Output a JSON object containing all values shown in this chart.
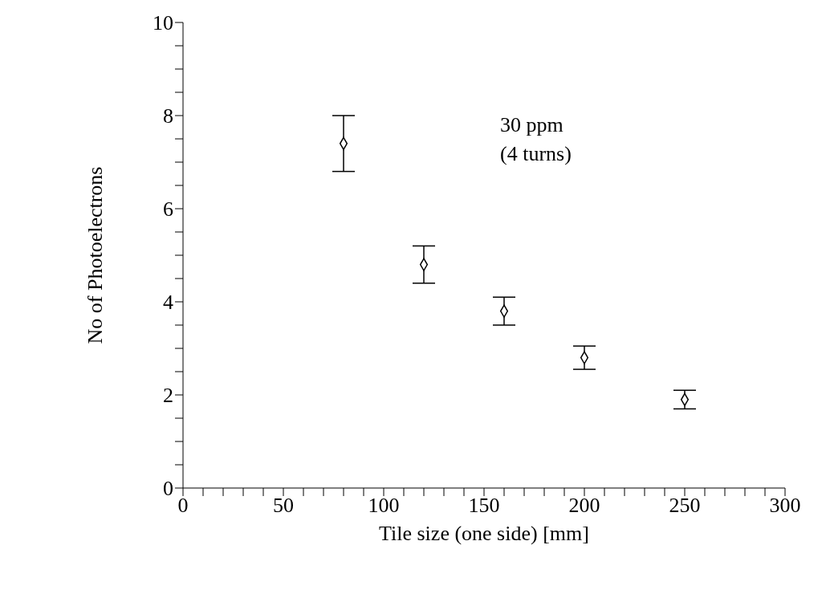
{
  "chart_data": {
    "type": "scatter",
    "xlabel": "Tile size (one side) [mm]",
    "ylabel": "No of Photoelectrons",
    "x": [
      80,
      120,
      160,
      200,
      250
    ],
    "series": [
      {
        "color": "#000000",
        "values": [
          7.4,
          4.8,
          3.8,
          2.8,
          1.9
        ],
        "errors": [
          0.6,
          0.4,
          0.3,
          0.25,
          0.2
        ]
      }
    ],
    "xlim": [
      0,
      300
    ],
    "xticks": [
      0,
      {
        "value": 10,
        "label": null
      },
      {
        "value": 20,
        "label": null
      },
      {
        "value": 30,
        "label": null
      },
      {
        "value": 40,
        "label": null
      },
      50,
      {
        "value": 60,
        "label": null
      },
      {
        "value": 70,
        "label": null
      },
      {
        "value": 80,
        "label": null
      },
      {
        "value": 90,
        "label": null
      },
      100,
      {
        "value": 110,
        "label": null
      },
      {
        "value": 120,
        "label": null
      },
      {
        "value": 130,
        "label": null
      },
      {
        "value": 140,
        "label": null
      },
      150,
      {
        "value": 160,
        "label": null
      },
      {
        "value": 170,
        "label": null
      },
      {
        "value": 180,
        "label": null
      },
      {
        "value": 190,
        "label": null
      },
      200,
      {
        "value": 210,
        "label": null
      },
      {
        "value": 220,
        "label": null
      },
      {
        "value": 230,
        "label": null
      },
      {
        "value": 240,
        "label": null
      },
      250,
      {
        "value": 260,
        "label": null
      },
      {
        "value": 270,
        "label": null
      },
      {
        "value": 280,
        "label": null
      },
      {
        "value": 290,
        "label": null
      },
      300
    ],
    "ylim": [
      0,
      10
    ],
    "yticks": [
      0,
      {
        "value": 0.5,
        "label": null
      },
      {
        "value": 1,
        "label": null
      },
      {
        "value": 1.5,
        "label": null
      },
      2,
      {
        "value": 2.5,
        "label": null
      },
      {
        "value": 3,
        "label": null
      },
      {
        "value": 3.5,
        "label": null
      },
      4,
      {
        "value": 4.5,
        "label": null
      },
      {
        "value": 5,
        "label": null
      },
      {
        "value": 5.5,
        "label": null
      },
      6,
      {
        "value": 6.5,
        "label": null
      },
      {
        "value": 7,
        "label": null
      },
      {
        "value": 7.5,
        "label": null
      },
      8,
      {
        "value": 8.5,
        "label": null
      },
      {
        "value": 9,
        "label": null
      },
      {
        "value": 9.5,
        "label": null
      },
      10
    ],
    "annotations": [
      "30 ppm",
      "(4 turns)"
    ],
    "marker": "diamond",
    "grid": false,
    "legend": false
  }
}
